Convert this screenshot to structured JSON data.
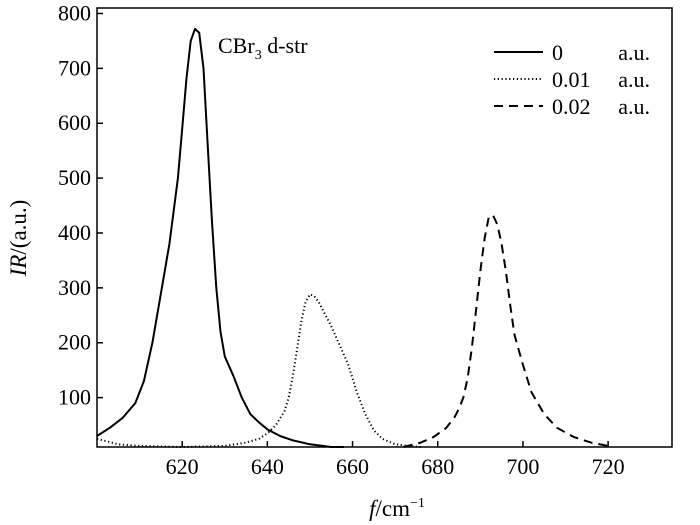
{
  "chart_data": {
    "type": "line",
    "title": "",
    "annotation": {
      "main": "CBr",
      "sub": "3",
      "rest": " d-str"
    },
    "xlabel": {
      "italic": "f",
      "unit": "/cm",
      "sup": "−1"
    },
    "ylabel": {
      "italic": "IR",
      "unit": "/(a.u.)"
    },
    "xlim": [
      600,
      735
    ],
    "ylim": [
      10,
      810
    ],
    "xticks": [
      620,
      640,
      660,
      680,
      700,
      720
    ],
    "yticks": [
      100,
      200,
      300,
      400,
      500,
      600,
      700,
      800
    ],
    "grid": false,
    "legend_position": "top-right",
    "series": [
      {
        "name": "0",
        "unit": "a.u.",
        "line_style": "solid",
        "x": [
          600,
          603,
          606,
          609,
          611,
          613,
          615,
          617,
          619,
          620,
          621,
          622,
          623,
          624,
          625,
          626,
          627,
          628,
          629,
          630,
          632,
          634,
          636,
          638,
          640,
          643,
          646,
          650,
          655,
          658
        ],
        "y": [
          30,
          45,
          63,
          90,
          130,
          200,
          290,
          380,
          500,
          590,
          680,
          750,
          772,
          765,
          700,
          560,
          420,
          300,
          220,
          175,
          140,
          100,
          70,
          55,
          42,
          30,
          22,
          15,
          10,
          8
        ]
      },
      {
        "name": "0.01",
        "unit": "a.u.",
        "line_style": "dotted",
        "x": [
          600,
          605,
          610,
          620,
          630,
          635,
          638,
          640,
          642,
          644,
          645,
          646,
          647,
          648,
          649,
          650,
          651,
          652,
          653,
          655,
          657,
          659,
          661,
          663,
          665,
          667,
          670,
          673,
          676
        ],
        "y": [
          25,
          15,
          12,
          10,
          12,
          18,
          25,
          35,
          50,
          75,
          100,
          140,
          190,
          240,
          275,
          288,
          285,
          275,
          260,
          230,
          195,
          160,
          110,
          70,
          40,
          25,
          15,
          12,
          10
        ]
      },
      {
        "name": "0.02",
        "unit": "a.u.",
        "line_style": "dashed",
        "x": [
          672,
          676,
          679,
          682,
          684,
          685,
          686,
          687,
          688,
          689,
          690,
          691,
          692,
          693,
          694,
          695,
          696,
          697,
          698,
          700,
          702,
          705,
          708,
          712,
          716,
          720
        ],
        "y": [
          10,
          18,
          28,
          45,
          65,
          80,
          100,
          135,
          190,
          260,
          330,
          390,
          430,
          432,
          415,
          380,
          330,
          270,
          215,
          160,
          110,
          70,
          45,
          28,
          18,
          12
        ]
      }
    ]
  }
}
